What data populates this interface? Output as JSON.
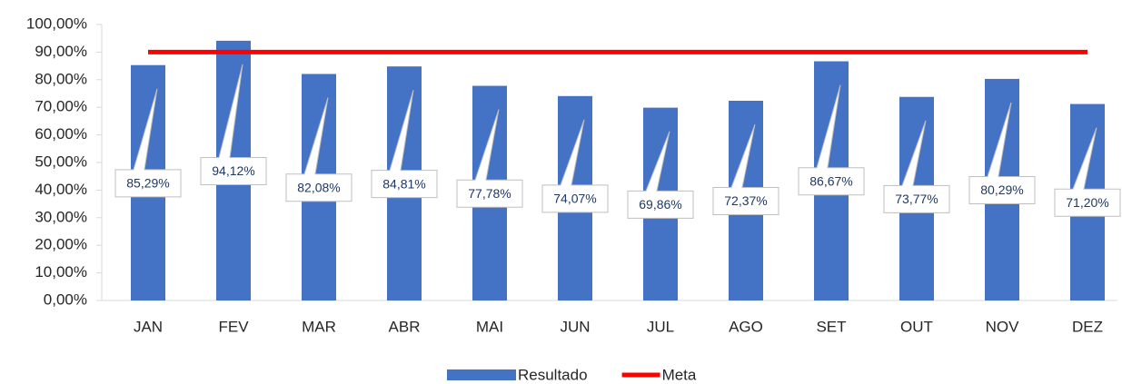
{
  "chart_data": {
    "type": "bar",
    "categories": [
      "JAN",
      "FEV",
      "MAR",
      "ABR",
      "MAI",
      "JUN",
      "JUL",
      "AGO",
      "SET",
      "OUT",
      "NOV",
      "DEZ"
    ],
    "series": [
      {
        "name": "Resultado",
        "type": "bar",
        "color": "#4472c4",
        "values": [
          85.29,
          94.12,
          82.08,
          84.81,
          77.78,
          74.07,
          69.86,
          72.37,
          86.67,
          73.77,
          80.29,
          71.2
        ],
        "value_labels": [
          "85,29%",
          "94,12%",
          "82,08%",
          "84,81%",
          "77,78%",
          "74,07%",
          "69,86%",
          "72,37%",
          "86,67%",
          "73,77%",
          "80,29%",
          "71,20%"
        ]
      },
      {
        "name": "Meta",
        "type": "line",
        "color": "#ff0000",
        "values": [
          90,
          90,
          90,
          90,
          90,
          90,
          90,
          90,
          90,
          90,
          90,
          90
        ]
      }
    ],
    "ylim": [
      0,
      100
    ],
    "yticks": [
      {
        "value": 0,
        "label": "0,00%"
      },
      {
        "value": 10,
        "label": "10,00%"
      },
      {
        "value": 20,
        "label": "20,00%"
      },
      {
        "value": 30,
        "label": "30,00%"
      },
      {
        "value": 40,
        "label": "40,00%"
      },
      {
        "value": 50,
        "label": "50,00%"
      },
      {
        "value": 60,
        "label": "60,00%"
      },
      {
        "value": 70,
        "label": "70,00%"
      },
      {
        "value": 80,
        "label": "80,00%"
      },
      {
        "value": 90,
        "label": "90,00%"
      },
      {
        "value": 100,
        "label": "100,00%"
      }
    ],
    "legend": "bottom"
  }
}
